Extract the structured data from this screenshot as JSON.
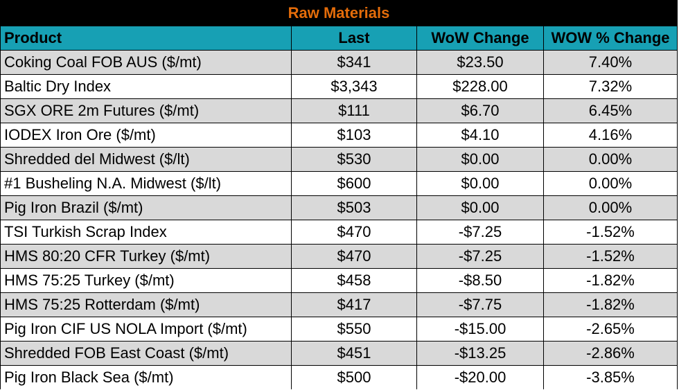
{
  "title": "Raw Materials",
  "columns": [
    "Product",
    "Last",
    "WoW Change",
    "WOW % Change"
  ],
  "rows": [
    {
      "product": "Coking Coal FOB AUS ($/mt)",
      "last": "$341",
      "wow": "$23.50",
      "pct": "7.40%"
    },
    {
      "product": "Baltic Dry Index",
      "last": "$3,343",
      "wow": "$228.00",
      "pct": "7.32%"
    },
    {
      "product": "SGX ORE 2m Futures ($/mt)",
      "last": "$111",
      "wow": "$6.70",
      "pct": "6.45%"
    },
    {
      "product": "IODEX  Iron Ore ($/mt)",
      "last": "$103",
      "wow": "$4.10",
      "pct": "4.16%"
    },
    {
      "product": "Shredded del  Midwest ($/lt)",
      "last": "$530",
      "wow": "$0.00",
      "pct": "0.00%"
    },
    {
      "product": "#1 Busheling N.A. Midwest ($/lt)",
      "last": "$600",
      "wow": "$0.00",
      "pct": "0.00%"
    },
    {
      "product": "Pig Iron Brazil ($/mt)",
      "last": "$503",
      "wow": "$0.00",
      "pct": "0.00%"
    },
    {
      "product": "TSI Turkish Scrap Index",
      "last": "$470",
      "wow": "-$7.25",
      "pct": "-1.52%"
    },
    {
      "product": "HMS 80:20 CFR Turkey ($/mt)",
      "last": "$470",
      "wow": "-$7.25",
      "pct": "-1.52%"
    },
    {
      "product": "HMS 75:25 Turkey ($/mt)",
      "last": "$458",
      "wow": "-$8.50",
      "pct": "-1.82%"
    },
    {
      "product": "HMS 75:25 Rotterdam ($/mt)",
      "last": "$417",
      "wow": "-$7.75",
      "pct": "-1.82%"
    },
    {
      "product": "Pig Iron CIF US NOLA Import ($/mt)",
      "last": "$550",
      "wow": "-$15.00",
      "pct": "-2.65%"
    },
    {
      "product": "Shredded FOB East Coast ($/mt)",
      "last": "$451",
      "wow": "-$13.25",
      "pct": "-2.86%"
    },
    {
      "product": "Pig Iron Black Sea ($/mt)",
      "last": "$500",
      "wow": "-$20.00",
      "pct": "-3.85%"
    }
  ],
  "colors": {
    "title_bg": "#000000",
    "title_text": "#e46c0a",
    "header_bg": "#17a0b4",
    "shade": "#d9d9d9"
  }
}
